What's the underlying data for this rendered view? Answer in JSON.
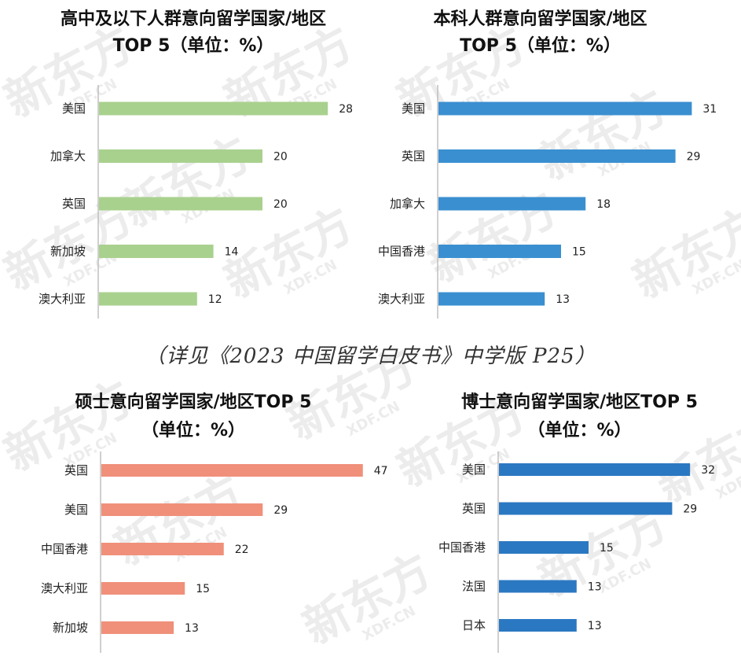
{
  "watermark": {
    "brand": "新东方",
    "domain": "XDF.CN"
  },
  "note": "（详见《2023 中国留学白皮书》中学版 P25）",
  "chart_data": [
    {
      "type": "bar",
      "orientation": "horizontal",
      "title_lines": [
        "高中及以下人群意向留学国家/地区",
        "TOP 5（单位：%）"
      ],
      "categories": [
        "美国",
        "加拿大",
        "英国",
        "新加坡",
        "澳大利亚"
      ],
      "values": [
        28,
        20,
        20,
        14,
        12
      ],
      "color": "#a9d18e"
    },
    {
      "type": "bar",
      "orientation": "horizontal",
      "title_lines": [
        "本科人群意向留学国家/地区",
        "TOP 5（单位：%）"
      ],
      "categories": [
        "美国",
        "英国",
        "加拿大",
        "中国香港",
        "澳大利亚"
      ],
      "values": [
        31,
        29,
        18,
        15,
        13
      ],
      "color": "#3a8fd0"
    },
    {
      "type": "bar",
      "orientation": "horizontal",
      "title_lines": [
        "硕士意向留学国家/地区TOP 5",
        "（单位：%）"
      ],
      "categories": [
        "英国",
        "美国",
        "中国香港",
        "澳大利亚",
        "新加坡"
      ],
      "values": [
        47,
        29,
        22,
        15,
        13
      ],
      "color": "#f0907a"
    },
    {
      "type": "bar",
      "orientation": "horizontal",
      "title_lines": [
        "博士意向留学国家/地区TOP 5",
        "（单位：%）"
      ],
      "categories": [
        "美国",
        "英国",
        "中国香港",
        "法国",
        "日本"
      ],
      "values": [
        32,
        29,
        15,
        13,
        13
      ],
      "color": "#2b78c2"
    }
  ]
}
